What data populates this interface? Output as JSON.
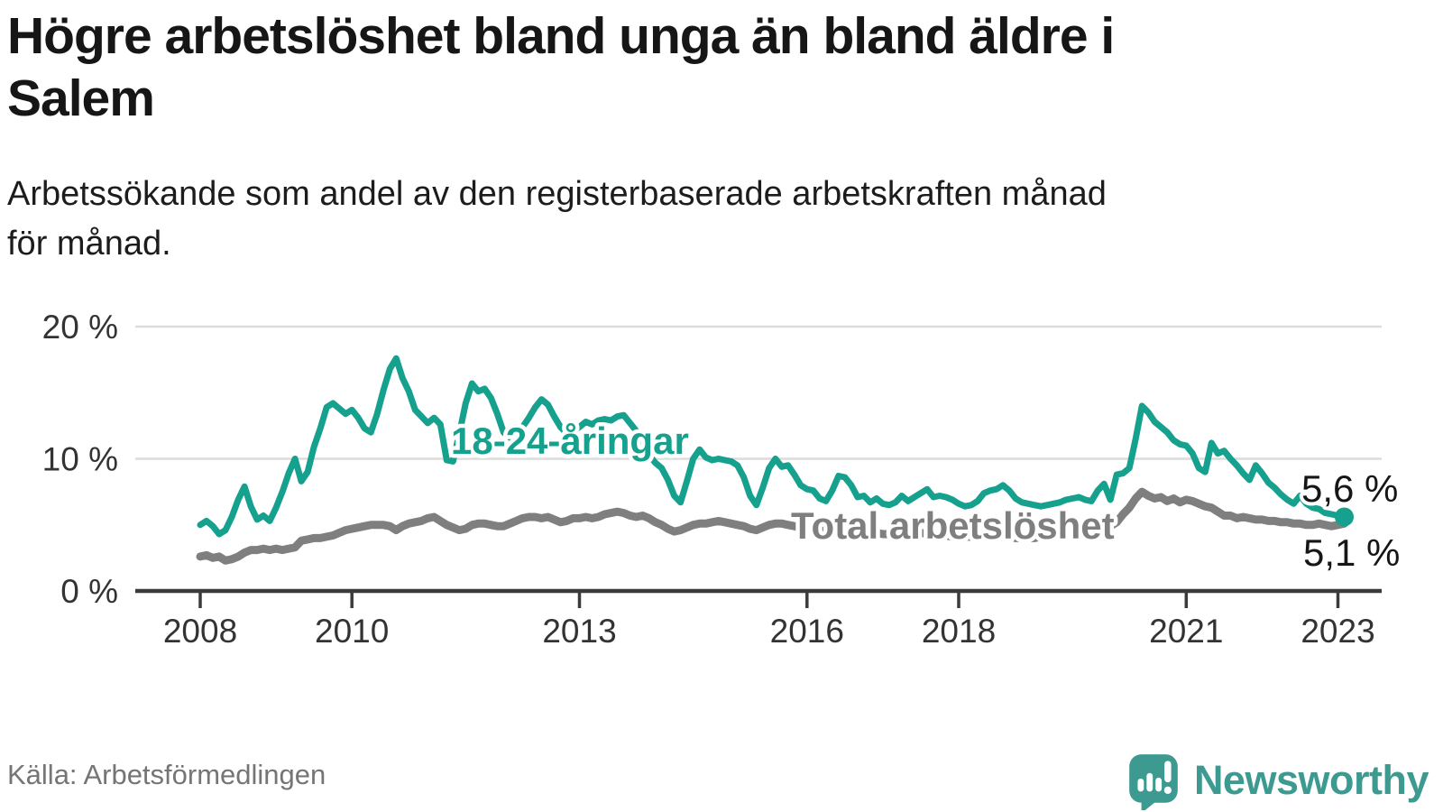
{
  "header": {
    "title_lines": [
      "Högre arbetslöshet bland unga än bland äldre i",
      "Salem"
    ],
    "subtitle_lines": [
      "Arbetssökande som andel av den registerbaserade arbetskraften månad",
      "för månad."
    ]
  },
  "chart_data": {
    "type": "line",
    "title": "Högre arbetslöshet bland unga än bland äldre i Salem",
    "xlabel": "",
    "ylabel": "Arbetssökande som andel av den registerbaserade arbetskraften",
    "x_axis": {
      "ticks": [
        2008,
        2010,
        2013,
        2016,
        2018,
        2021,
        2023
      ],
      "range": [
        2007.1,
        2023.6
      ],
      "unit": "year"
    },
    "y_axis": {
      "ticks": [
        {
          "value": 0,
          "label": "0 %"
        },
        {
          "value": 10,
          "label": "10 %"
        },
        {
          "value": 20,
          "label": "20 %"
        }
      ],
      "gridlines": [
        10,
        20
      ],
      "range": [
        0,
        21.5
      ],
      "unit": "percent"
    },
    "legend_position": "inline-labels",
    "grid": "horizontal-only",
    "start_year": 2008,
    "points_per_year": 12,
    "series": [
      {
        "id": "youth",
        "name": "18-24-åringar",
        "color": "#16a08e",
        "end_label": "5,6 %",
        "end_value": 5.6,
        "values": [
          5.0,
          5.3,
          4.9,
          4.3,
          4.6,
          5.6,
          6.9,
          7.9,
          6.4,
          5.4,
          5.7,
          5.3,
          6.3,
          7.5,
          8.9,
          10.0,
          8.3,
          9.0,
          10.9,
          12.3,
          13.9,
          14.2,
          13.8,
          13.4,
          13.7,
          13.1,
          12.3,
          12.0,
          13.4,
          15.2,
          16.8,
          17.6,
          16.1,
          15.1,
          13.7,
          13.2,
          12.7,
          13.1,
          12.6,
          9.9,
          9.8,
          11.9,
          14.2,
          15.7,
          15.1,
          15.3,
          14.6,
          13.4,
          12.0,
          11.6,
          11.8,
          12.4,
          13.1,
          13.9,
          14.5,
          14.1,
          13.2,
          12.4,
          11.9,
          12.1,
          12.4,
          12.8,
          12.6,
          12.9,
          13.0,
          12.9,
          13.2,
          13.3,
          12.7,
          12.1,
          11.2,
          10.3,
          9.7,
          9.3,
          8.4,
          7.2,
          6.7,
          8.3,
          10.0,
          10.7,
          10.1,
          9.9,
          10.0,
          9.9,
          9.8,
          9.5,
          8.6,
          7.2,
          6.5,
          7.8,
          9.3,
          10.0,
          9.4,
          9.5,
          8.8,
          8.0,
          7.7,
          7.6,
          7.0,
          6.8,
          7.6,
          8.7,
          8.6,
          8.0,
          7.1,
          7.2,
          6.7,
          7.0,
          6.6,
          6.5,
          6.7,
          7.2,
          6.8,
          7.1,
          7.4,
          7.7,
          7.1,
          7.2,
          7.1,
          6.9,
          6.6,
          6.4,
          6.5,
          6.8,
          7.4,
          7.6,
          7.7,
          8.0,
          7.6,
          7.0,
          6.7,
          6.6,
          6.5,
          6.4,
          6.5,
          6.6,
          6.7,
          6.9,
          7.0,
          7.1,
          6.9,
          6.8,
          7.6,
          8.1,
          6.9,
          8.8,
          8.9,
          9.3,
          11.5,
          14.0,
          13.5,
          12.8,
          12.4,
          12.0,
          11.4,
          11.1,
          11.0,
          10.4,
          9.3,
          9.0,
          11.2,
          10.4,
          10.6,
          10.0,
          9.5,
          8.9,
          8.4,
          9.5,
          8.9,
          8.2,
          7.8,
          7.3,
          6.9,
          6.6,
          7.2,
          6.6,
          6.3,
          6.2,
          5.9,
          5.8,
          5.7,
          5.6
        ]
      },
      {
        "id": "total",
        "name": "Total arbetslöshet",
        "color": "#7f7f7f",
        "end_label": "5,1 %",
        "end_value": 5.1,
        "values": [
          2.6,
          2.7,
          2.5,
          2.6,
          2.3,
          2.4,
          2.6,
          2.9,
          3.1,
          3.1,
          3.2,
          3.1,
          3.2,
          3.1,
          3.2,
          3.3,
          3.8,
          3.9,
          4.0,
          4.0,
          4.1,
          4.2,
          4.4,
          4.6,
          4.7,
          4.8,
          4.9,
          5.0,
          5.0,
          5.0,
          4.9,
          4.6,
          4.9,
          5.1,
          5.2,
          5.3,
          5.5,
          5.6,
          5.3,
          5.0,
          4.8,
          4.6,
          4.7,
          5.0,
          5.1,
          5.1,
          5.0,
          4.9,
          4.9,
          5.1,
          5.3,
          5.5,
          5.6,
          5.6,
          5.5,
          5.6,
          5.4,
          5.2,
          5.3,
          5.5,
          5.5,
          5.6,
          5.5,
          5.6,
          5.8,
          5.9,
          6.0,
          5.9,
          5.7,
          5.6,
          5.7,
          5.5,
          5.2,
          5.0,
          4.7,
          4.5,
          4.6,
          4.8,
          5.0,
          5.1,
          5.1,
          5.2,
          5.3,
          5.2,
          5.1,
          5.0,
          4.9,
          4.7,
          4.6,
          4.8,
          5.0,
          5.1,
          5.1,
          5.0,
          4.9,
          4.8,
          4.8,
          4.7,
          4.6,
          4.5,
          4.6,
          4.7,
          4.7,
          4.6,
          4.5,
          4.5,
          4.4,
          4.4,
          4.3,
          4.3,
          4.3,
          4.4,
          4.4,
          4.4,
          4.4,
          4.3,
          4.3,
          4.2,
          4.2,
          4.1,
          4.1,
          4.1,
          4.1,
          4.2,
          4.2,
          4.2,
          4.2,
          4.1,
          4.1,
          4.0,
          4.0,
          4.0,
          4.0,
          4.1,
          4.1,
          4.2,
          4.2,
          4.3,
          4.3,
          4.4,
          4.4,
          4.5,
          4.5,
          4.7,
          4.9,
          5.2,
          5.8,
          6.3,
          7.0,
          7.5,
          7.2,
          7.0,
          7.1,
          6.8,
          7.0,
          6.7,
          6.9,
          6.8,
          6.6,
          6.4,
          6.3,
          6.0,
          5.7,
          5.7,
          5.5,
          5.6,
          5.5,
          5.4,
          5.4,
          5.3,
          5.3,
          5.2,
          5.2,
          5.1,
          5.1,
          5.0,
          5.0,
          5.1,
          5.0,
          4.9,
          5.0,
          5.1
        ]
      }
    ],
    "end_dot": {
      "series": "youth",
      "value": 5.6
    }
  },
  "footer": {
    "source": "Källa: Arbetsförmedlingen",
    "brand": "Newsworthy"
  },
  "colors": {
    "youth_line": "#16a08e",
    "total_line": "#7f7f7f",
    "brand_teal": "#3d9a91",
    "axis": "#3b3b3b",
    "gridline": "#dcdcdc",
    "tick_text": "#333333",
    "end_label_text": "#161616",
    "source_text": "#757575"
  }
}
